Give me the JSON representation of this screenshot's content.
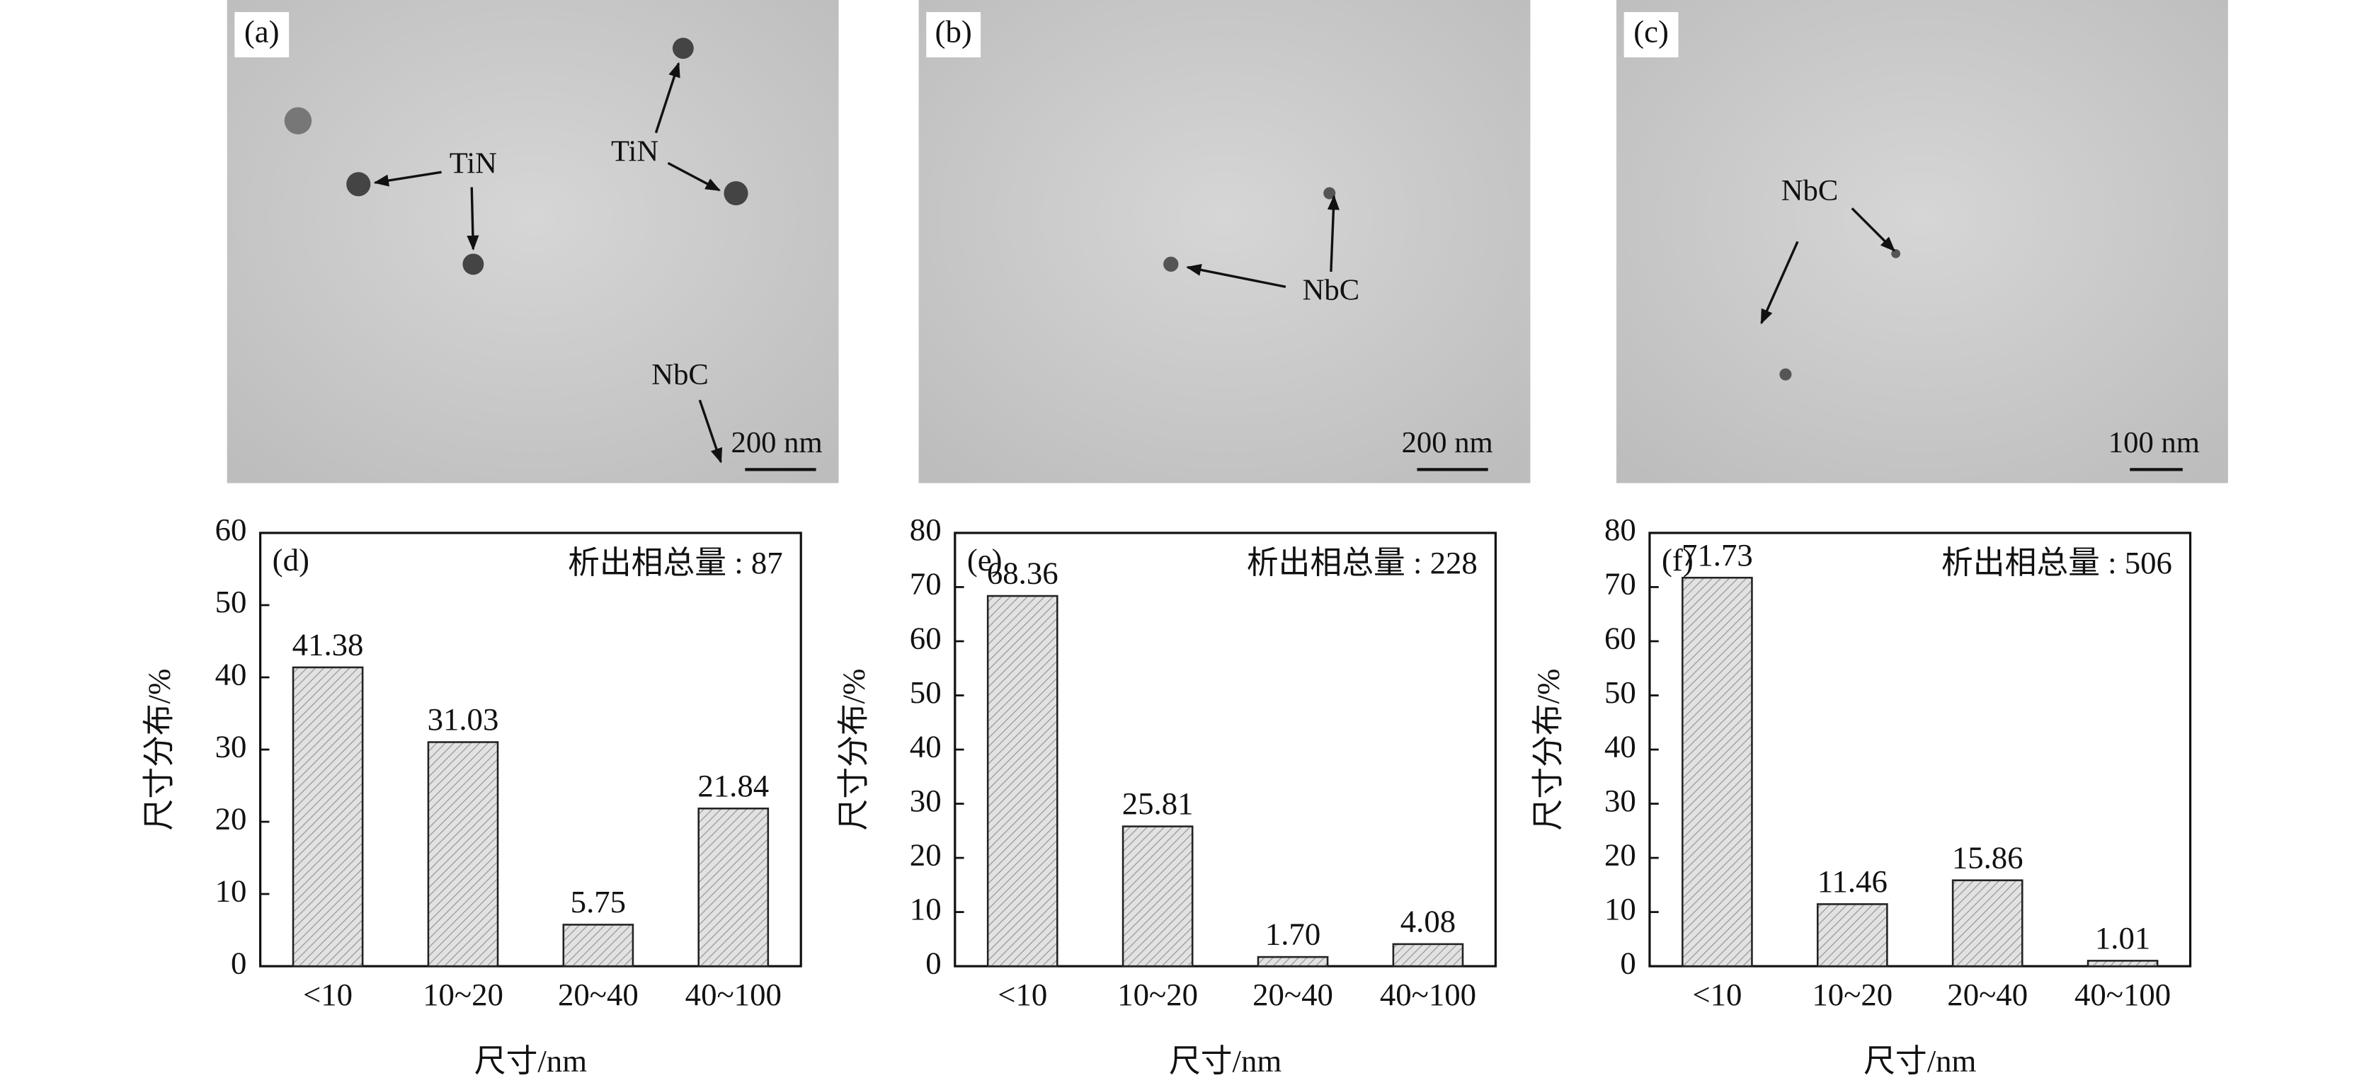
{
  "micrographs": [
    {
      "label": "(a)",
      "annotations": [
        "TiN",
        "TiN",
        "NbC"
      ],
      "scale_bar": "200 nm"
    },
    {
      "label": "(b)",
      "annotations": [
        "NbC"
      ],
      "scale_bar": "200 nm"
    },
    {
      "label": "(c)",
      "annotations": [
        "NbC"
      ],
      "scale_bar": "100 nm"
    }
  ],
  "chart_data": [
    {
      "type": "bar",
      "panel": "(d)",
      "annotation": "析出相总量 : 87",
      "xlabel": "尺寸/nm",
      "ylabel": "尺寸分布/%",
      "categories": [
        "<10",
        "10~20",
        "20~40",
        "40~100"
      ],
      "values": [
        41.38,
        31.03,
        5.75,
        21.84
      ],
      "value_labels": [
        "41.38",
        "31.03",
        "5.75",
        "21.84"
      ],
      "ylim": [
        0,
        60
      ],
      "yticks": [
        0,
        10,
        20,
        30,
        40,
        50,
        60
      ],
      "color": "#d9d9d9"
    },
    {
      "type": "bar",
      "panel": "(e)",
      "annotation": "析出相总量 : 228",
      "xlabel": "尺寸/nm",
      "ylabel": "尺寸分布/%",
      "categories": [
        "<10",
        "10~20",
        "20~40",
        "40~100"
      ],
      "values": [
        68.36,
        25.81,
        1.7,
        4.08
      ],
      "value_labels": [
        "68.36",
        "25.81",
        "1.70",
        "4.08"
      ],
      "ylim": [
        0,
        80
      ],
      "yticks": [
        0,
        10,
        20,
        30,
        40,
        50,
        60,
        70,
        80
      ],
      "color": "#d9d9d9"
    },
    {
      "type": "bar",
      "panel": "(f)",
      "annotation": "析出相总量 : 506",
      "xlabel": "尺寸/nm",
      "ylabel": "尺寸分布/%",
      "categories": [
        "<10",
        "10~20",
        "20~40",
        "40~100"
      ],
      "values": [
        71.73,
        11.46,
        15.86,
        1.01
      ],
      "value_labels": [
        "71.73",
        "11.46",
        "15.86",
        "1.01"
      ],
      "ylim": [
        0,
        80
      ],
      "yticks": [
        0,
        10,
        20,
        30,
        40,
        50,
        60,
        70,
        80
      ],
      "color": "#d9d9d9"
    }
  ]
}
